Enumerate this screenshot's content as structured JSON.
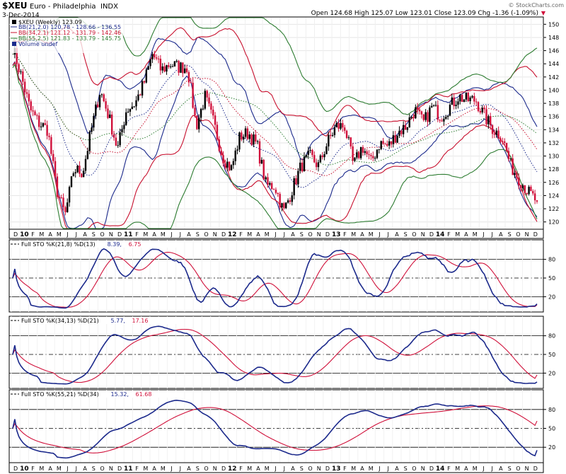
{
  "header": {
    "symbol": "$XEU",
    "name": "Euro - Philadelphia",
    "exchange": "INDX",
    "date": "3-Dec-2014",
    "quote": "Open 124.68  High 125.07  Low 123.01  Close 123.09  Chg -1.36 (-1.09%)",
    "quote_arrow": "▼",
    "copyright": "© StockCharts.com"
  },
  "price_panel": {
    "legend": [
      {
        "text": "$XEU (Weekly) 123.09",
        "color": "#000000"
      },
      {
        "text": "BB(21,2.0) 120.78 - 128.66 - 136.55",
        "color": "#1c2a8c"
      },
      {
        "text": "BB(34,2.1) 121.12 - 131.79 - 142.46",
        "color": "#c8102e"
      },
      {
        "text": "BB(55,2.5) 121.83 - 133.79 - 145.75",
        "color": "#2e7d32"
      },
      {
        "text": "Volume undef",
        "color": "#1c2a8c"
      }
    ],
    "y_labels": [
      "150",
      "148",
      "146",
      "144",
      "142",
      "140",
      "138",
      "136",
      "134",
      "132",
      "130",
      "128",
      "126",
      "124",
      "122",
      "120"
    ]
  },
  "stoch_panels": [
    {
      "label": "Full STO %K(21,8) %D(13)",
      "k_val": "8.39",
      "d_val": "6.75"
    },
    {
      "label": "Full STO %K(34,13) %D(21)",
      "k_val": "5.77",
      "d_val": "17.16"
    },
    {
      "label": "Full STO %K(55,21) %D(34)",
      "k_val": "15.32",
      "d_val": "61.68"
    }
  ],
  "x_axis": {
    "labels": [
      "D",
      "10",
      "F",
      "M",
      "A",
      "M",
      "J",
      "J",
      "A",
      "S",
      "O",
      "N",
      "D",
      "11",
      "F",
      "M",
      "A",
      "M",
      "J",
      "J",
      "A",
      "S",
      "O",
      "N",
      "D",
      "12",
      "F",
      "M",
      "A",
      "M",
      "J",
      "J",
      "A",
      "S",
      "O",
      "N",
      "D",
      "13",
      "F",
      "M",
      "A",
      "M",
      "J",
      "J",
      "A",
      "S",
      "O",
      "N",
      "D",
      "14",
      "F",
      "M",
      "A",
      "M",
      "J",
      "J",
      "A",
      "S",
      "O",
      "N",
      "D"
    ],
    "year_labels": [
      "10",
      "11",
      "12",
      "13",
      "14"
    ]
  },
  "colors": {
    "price_up": "#000000",
    "price_down": "#d0103a",
    "bb21": "#1c2a8c",
    "bb34": "#c8102e",
    "bb55": "#2e7d32",
    "stoch_k": "#1c2a8c",
    "stoch_d": "#d0103a",
    "title_bar": "#1c2a8c"
  },
  "chart_data": {
    "type": "line",
    "title": "$XEU Euro - Philadelphia INDX (Weekly)",
    "x_range": [
      "2009-12",
      "2014-12"
    ],
    "price": {
      "ylim": [
        119,
        151
      ],
      "month_points": [
        [
          "2009-12",
          146.5
        ],
        [
          "2010-01",
          142
        ],
        [
          "2010-02",
          137
        ],
        [
          "2010-03",
          135
        ],
        [
          "2010-04",
          134
        ],
        [
          "2010-05",
          125
        ],
        [
          "2010-06",
          121
        ],
        [
          "2010-07",
          128
        ],
        [
          "2010-08",
          127.5
        ],
        [
          "2010-09",
          134
        ],
        [
          "2010-10",
          140
        ],
        [
          "2010-11",
          136
        ],
        [
          "2010-12",
          131
        ],
        [
          "2011-01",
          137
        ],
        [
          "2011-02",
          138
        ],
        [
          "2011-03",
          141
        ],
        [
          "2011-04",
          145.5
        ],
        [
          "2011-05",
          143
        ],
        [
          "2011-06",
          144
        ],
        [
          "2011-07",
          143.5
        ],
        [
          "2011-08",
          143.5
        ],
        [
          "2011-09",
          134.5
        ],
        [
          "2011-10",
          139
        ],
        [
          "2011-11",
          135
        ],
        [
          "2011-12",
          130
        ],
        [
          "2012-01",
          128
        ],
        [
          "2012-02",
          133
        ],
        [
          "2012-03",
          133.5
        ],
        [
          "2012-04",
          131.5
        ],
        [
          "2012-05",
          125.5
        ],
        [
          "2012-06",
          125.5
        ],
        [
          "2012-07",
          121.5
        ],
        [
          "2012-08",
          125
        ],
        [
          "2012-09",
          128.5
        ],
        [
          "2012-10",
          130
        ],
        [
          "2012-11",
          128.5
        ],
        [
          "2012-12",
          132
        ],
        [
          "2013-01",
          134.5
        ],
        [
          "2013-02",
          134.5
        ],
        [
          "2013-03",
          128.5
        ],
        [
          "2013-04",
          131.5
        ],
        [
          "2013-05",
          129
        ],
        [
          "2013-06",
          132
        ],
        [
          "2013-07",
          131.5
        ],
        [
          "2013-08",
          133.5
        ],
        [
          "2013-09",
          134.5
        ],
        [
          "2013-10",
          137
        ],
        [
          "2013-11",
          135
        ],
        [
          "2013-12",
          137.5
        ],
        [
          "2014-01",
          136
        ],
        [
          "2014-02",
          137.5
        ],
        [
          "2014-03",
          139
        ],
        [
          "2014-04",
          138.5
        ],
        [
          "2014-05",
          138.5
        ],
        [
          "2014-06",
          136
        ],
        [
          "2014-07",
          134
        ],
        [
          "2014-08",
          133
        ],
        [
          "2014-09",
          128.5
        ],
        [
          "2014-10",
          126.5
        ],
        [
          "2014-11",
          124.5
        ],
        [
          "2014-12",
          123.09
        ]
      ],
      "last_close": 123.09
    },
    "stochastics": [
      {
        "name": "Full STO %K(21,8) %D(13)",
        "ylim": [
          0,
          100
        ],
        "levels": [
          20,
          50,
          80
        ],
        "k_last": 8.39,
        "d_last": 6.75
      },
      {
        "name": "Full STO %K(34,13) %D(21)",
        "ylim": [
          0,
          100
        ],
        "levels": [
          20,
          50,
          80
        ],
        "k_last": 5.77,
        "d_last": 17.16
      },
      {
        "name": "Full STO %K(55,21) %D(34)",
        "ylim": [
          0,
          100
        ],
        "levels": [
          20,
          50,
          80
        ],
        "k_last": 15.32,
        "d_last": 61.68
      }
    ],
    "bollinger_bands": [
      {
        "name": "BB(21,2.0)",
        "lower": 120.78,
        "mid": 128.66,
        "upper": 136.55
      },
      {
        "name": "BB(34,2.1)",
        "lower": 121.12,
        "mid": 131.79,
        "upper": 142.46
      },
      {
        "name": "BB(55,2.5)",
        "lower": 121.83,
        "mid": 133.79,
        "upper": 145.75
      }
    ]
  }
}
